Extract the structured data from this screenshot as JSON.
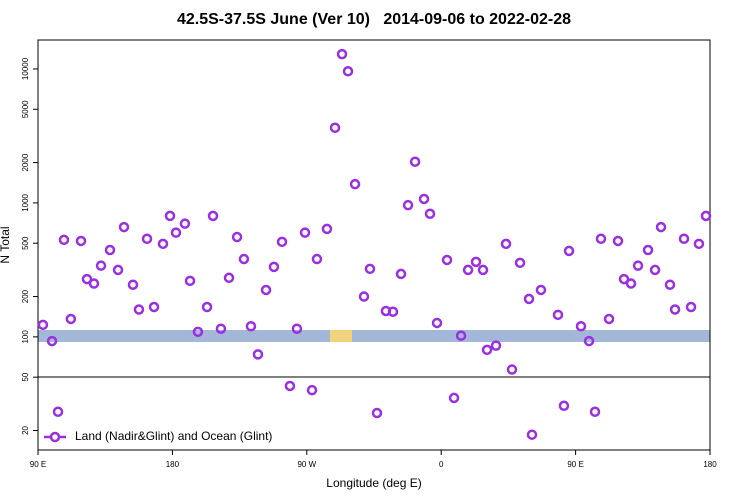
{
  "chart_data": {
    "type": "scatter",
    "title": "42.5S-37.5S June (Ver 10)   2014-09-06 to 2022-02-28",
    "x_label": "Longitude (deg E)",
    "y_label": "N Total",
    "ylog": true,
    "xlim": [
      90,
      540
    ],
    "ylim": [
      14.3,
      16450
    ],
    "xticks": [
      {
        "value": 90,
        "label": "90 E"
      },
      180,
      {
        "value": 270,
        "label": "90 W"
      },
      {
        "value": 360,
        "label": "0"
      },
      {
        "value": 450,
        "label": "90 E"
      },
      {
        "value": 540,
        "label": "180"
      }
    ],
    "yticks": [
      20,
      50,
      100,
      200,
      500,
      1000,
      2000,
      5000,
      10000
    ],
    "legend": "bottom-left",
    "x": [
      93.3,
      99.4,
      103.4,
      107.4,
      112,
      118.8,
      122.8,
      127.5,
      132.2,
      138.2,
      143.6,
      147.6,
      153.6,
      157.6,
      163,
      167.7,
      173.7,
      178.4,
      182.4,
      188.4,
      191.8,
      197.1,
      203.2,
      207.2,
      212.5,
      217.9,
      223.3,
      227.9,
      232.6,
      237.3,
      242.7,
      248,
      253.4,
      258.7,
      263.4,
      268.8,
      273.5,
      276.8,
      283.5,
      288.9,
      293.6,
      297.6,
      302.3,
      308.3,
      312.3,
      317,
      323,
      327.7,
      333.1,
      337.8,
      342.5,
      348.5,
      352.5,
      357.2,
      363.9,
      368.6,
      373.3,
      378,
      383.3,
      388,
      390.7,
      396.7,
      403.4,
      407.4,
      412.8,
      418.8,
      420.8,
      426.8,
      438.2,
      442.2,
      445.6,
      453.6,
      459,
      463,
      467,
      472.4,
      478.4,
      482.4,
      487.1,
      491.8,
      498.5,
      503.2,
      507.2,
      513.2,
      516.6,
      522.6,
      527.3,
      532.6,
      537.3
    ],
    "series": [
      {
        "name": "Land (Nadir&Glint) and Ocean (Glint)",
        "color": "#9b2fe0",
        "values": [
          123,
          93,
          27.6,
          530,
          136,
          520,
          270,
          250,
          340,
          445,
          316,
          660,
          245,
          160,
          540,
          167,
          495,
          800,
          600,
          700,
          262,
          109,
          167,
          800,
          115,
          276,
          556,
          381,
          120,
          74,
          224,
          333,
          512,
          43,
          115,
          600,
          40,
          381,
          640,
          3640,
          12900,
          9610,
          1380,
          200,
          322,
          27,
          156,
          154,
          295,
          962,
          2030,
          1070,
          830,
          127,
          375,
          35,
          102,
          316,
          363,
          316,
          80,
          86,
          495,
          57,
          357,
          192,
          18.6,
          224,
          146,
          30.6,
          438,
          120,
          93,
          27.6,
          540,
          136,
          520,
          270,
          250,
          340,
          445,
          316,
          660,
          245,
          160,
          540,
          167,
          495,
          800
        ]
      }
    ]
  }
}
